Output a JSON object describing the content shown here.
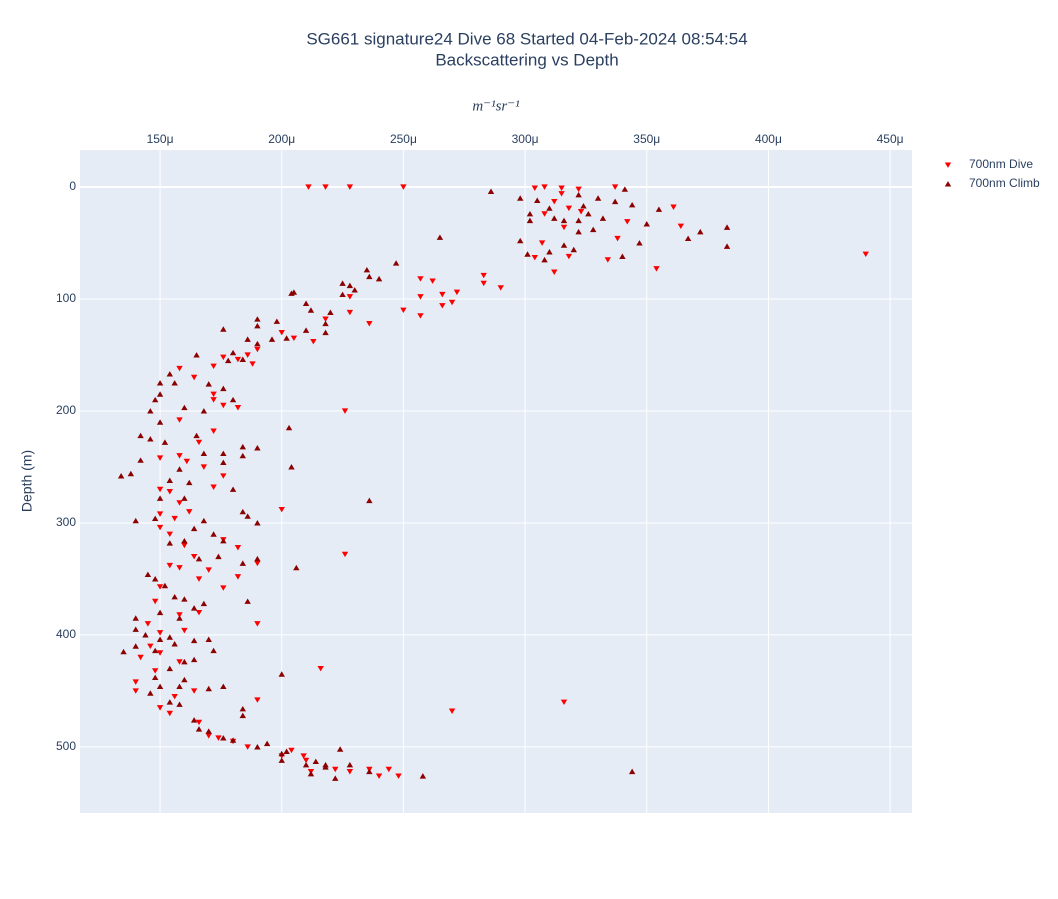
{
  "chart_data": {
    "type": "scatter",
    "title": "SG661 signature24 Dive 68 Started 04-Feb-2024 08:54:54",
    "subtitle": "Backscattering vs Depth",
    "x_label": "m⁻¹sr⁻¹",
    "y_label": "Depth (m)",
    "xlim": [
      0.0001171,
      0.000459
    ],
    "ylim": [
      -33,
      559
    ],
    "y_reversed": true,
    "xaxis_side": "top",
    "grid": true,
    "legend": "right",
    "xticks": [
      {
        "value": 0.00015,
        "label": "150μ"
      },
      {
        "value": 0.0002,
        "label": "200μ"
      },
      {
        "value": 0.00025,
        "label": "250μ"
      },
      {
        "value": 0.0003,
        "label": "300μ"
      },
      {
        "value": 0.00035,
        "label": "350μ"
      },
      {
        "value": 0.0004,
        "label": "400μ"
      },
      {
        "value": 0.00045,
        "label": "450μ"
      }
    ],
    "yticks": [
      0,
      100,
      200,
      300,
      400,
      500
    ],
    "series": [
      {
        "name": "700nm Dive",
        "color": "#ff0000",
        "marker": "triangle-down",
        "x": [
          0.000211,
          0.000218,
          0.000228,
          0.00025,
          0.000304,
          0.000308,
          0.000315,
          0.000322,
          0.000337,
          0.000315,
          0.000312,
          0.000318,
          0.000308,
          0.000323,
          0.000316,
          0.000361,
          0.000364,
          0.000342,
          0.000338,
          0.000334,
          0.000354,
          0.00044,
          0.000312,
          0.000318,
          0.000307,
          0.000304,
          0.000257,
          0.000257,
          0.000262,
          0.000266,
          0.000272,
          0.000266,
          0.00027,
          0.000283,
          0.000283,
          0.00029,
          0.00025,
          0.000257,
          0.000236,
          0.000228,
          0.000228,
          0.000218,
          0.0002,
          0.000205,
          0.000213,
          0.00019,
          0.000188,
          0.000186,
          0.000176,
          0.000182,
          0.000172,
          0.000158,
          0.000164,
          0.000172,
          0.000172,
          0.000176,
          0.000182,
          0.000226,
          0.000158,
          0.000172,
          0.000166,
          0.000158,
          0.00015,
          0.000161,
          0.000168,
          0.000176,
          0.000172,
          0.000154,
          0.000158,
          0.00015,
          0.000162,
          0.00015,
          0.000156,
          0.000154,
          0.00016,
          0.000164,
          0.00017,
          0.000182,
          0.000176,
          0.000166,
          0.00015,
          0.000176,
          0.000182,
          0.000158,
          0.000154,
          0.00015,
          0.000148,
          0.000158,
          0.000166,
          0.00016,
          0.00015,
          0.000146,
          0.00015,
          0.000142,
          0.000148,
          0.00014,
          0.000158,
          0.000164,
          0.000156,
          0.00015,
          0.000154,
          0.000166,
          0.00017,
          0.000174,
          0.000186,
          0.00018,
          0.0002,
          0.000226,
          0.00019,
          0.00019,
          0.000216,
          0.00027,
          0.000316,
          0.00019,
          0.000204,
          0.0002,
          0.00021,
          0.000236,
          0.000244,
          0.000248,
          0.00024,
          0.000228,
          0.000222,
          0.000212,
          0.000209,
          0.00014,
          0.000145
        ],
        "values": [
          0,
          0,
          0,
          0,
          1,
          0,
          1,
          2,
          0,
          6,
          13,
          19,
          24,
          22,
          36,
          18,
          35,
          31,
          46,
          65,
          73,
          60,
          76,
          62,
          50,
          63,
          82,
          98,
          84,
          96,
          94,
          106,
          103,
          79,
          86,
          90,
          110,
          115,
          122,
          112,
          98,
          118,
          130,
          135,
          138,
          145,
          158,
          150,
          152,
          154,
          160,
          162,
          170,
          185,
          190,
          195,
          197,
          200,
          208,
          218,
          228,
          240,
          242,
          245,
          250,
          258,
          268,
          272,
          282,
          270,
          290,
          292,
          296,
          310,
          320,
          330,
          342,
          348,
          358,
          350,
          304,
          315,
          322,
          340,
          338,
          357,
          370,
          382,
          380,
          396,
          398,
          410,
          416,
          420,
          432,
          442,
          424,
          450,
          455,
          465,
          470,
          478,
          490,
          492,
          500,
          495,
          288,
          328,
          336,
          390,
          430,
          468,
          460,
          458,
          503,
          508,
          512,
          520,
          520,
          526,
          526,
          522,
          520,
          522,
          508,
          450,
          390
        ]
      },
      {
        "name": "700nm Climb",
        "color": "#8b0000",
        "marker": "triangle-up",
        "x": [
          0.000286,
          0.000298,
          0.000305,
          0.000302,
          0.00031,
          0.000322,
          0.00033,
          0.000337,
          0.000341,
          0.000344,
          0.000324,
          0.000326,
          0.000332,
          0.000328,
          0.000322,
          0.000316,
          0.000312,
          0.000302,
          0.000298,
          0.000301,
          0.00031,
          0.000308,
          0.000316,
          0.000322,
          0.00032,
          0.00034,
          0.000347,
          0.00035,
          0.000355,
          0.000367,
          0.000372,
          0.000383,
          0.000383,
          0.000265,
          0.000247,
          0.000235,
          0.000236,
          0.00024,
          0.000228,
          0.000225,
          0.00023,
          0.000225,
          0.00021,
          0.000212,
          0.000204,
          0.00022,
          0.000218,
          0.000218,
          0.00021,
          0.000198,
          0.00019,
          0.00019,
          0.00019,
          0.000196,
          0.000202,
          0.000186,
          0.000176,
          0.00018,
          0.000184,
          0.000178,
          0.000165,
          0.000154,
          0.00015,
          0.00015,
          0.000156,
          0.00017,
          0.000176,
          0.00018,
          0.000168,
          0.00016,
          0.000148,
          0.000146,
          0.00015,
          0.000146,
          0.000142,
          0.000152,
          0.000165,
          0.000168,
          0.000176,
          0.000184,
          0.00019,
          0.000184,
          0.000176,
          0.000158,
          0.000154,
          0.000162,
          0.000142,
          0.000134,
          0.000138,
          0.00015,
          0.00016,
          0.00018,
          0.000184,
          0.00019,
          0.000186,
          0.000168,
          0.000164,
          0.000172,
          0.000176,
          0.000174,
          0.000184,
          0.00019,
          0.000166,
          0.00016,
          0.000154,
          0.000148,
          0.00014,
          0.000145,
          0.000148,
          0.000152,
          0.000156,
          0.00016,
          0.000168,
          0.000164,
          0.000186,
          0.000158,
          0.00015,
          0.00014,
          0.00014,
          0.000144,
          0.00015,
          0.000156,
          0.000164,
          0.00017,
          0.000172,
          0.000164,
          0.00016,
          0.00015,
          0.000146,
          0.000154,
          0.000158,
          0.00017,
          0.000176,
          0.000184,
          0.000164,
          0.000166,
          0.00017,
          0.000184,
          0.000176,
          0.00018,
          0.00019,
          0.000194,
          0.0002,
          0.0002,
          0.000202,
          0.000214,
          0.00021,
          0.000218,
          0.000212,
          0.000222,
          0.000218,
          0.000224,
          0.000228,
          0.000236,
          0.000258,
          0.000344,
          0.000205,
          0.000203,
          0.000204,
          0.0002,
          0.000206,
          0.000236,
          0.00014,
          0.000135,
          0.000154,
          0.000148,
          0.000158,
          0.000148,
          0.00016,
          0.000154
        ],
        "values": [
          4,
          10,
          12,
          24,
          19,
          7,
          10,
          13,
          2,
          16,
          17,
          24,
          28,
          38,
          30,
          30,
          28,
          30,
          48,
          60,
          58,
          65,
          52,
          40,
          56,
          62,
          50,
          33,
          20,
          46,
          40,
          36,
          53,
          45,
          68,
          74,
          80,
          82,
          88,
          86,
          92,
          96,
          104,
          110,
          95,
          112,
          122,
          130,
          128,
          120,
          118,
          124,
          140,
          136,
          135,
          136,
          127,
          148,
          154,
          155,
          150,
          167,
          175,
          185,
          175,
          176,
          180,
          190,
          200,
          197,
          190,
          200,
          210,
          225,
          222,
          228,
          222,
          238,
          238,
          232,
          233,
          240,
          246,
          252,
          262,
          264,
          244,
          258,
          256,
          278,
          278,
          270,
          290,
          300,
          294,
          298,
          305,
          310,
          316,
          330,
          336,
          332,
          332,
          316,
          318,
          296,
          298,
          346,
          350,
          356,
          366,
          368,
          372,
          376,
          370,
          385,
          380,
          385,
          395,
          400,
          404,
          408,
          405,
          404,
          414,
          422,
          440,
          446,
          452,
          460,
          462,
          448,
          446,
          466,
          476,
          484,
          486,
          472,
          492,
          494,
          500,
          497,
          506,
          512,
          504,
          513,
          516,
          516,
          524,
          528,
          518,
          502,
          516,
          522,
          526,
          522,
          94,
          215,
          250,
          435,
          340,
          280,
          410,
          415,
          430,
          438,
          446,
          414,
          424,
          402
        ]
      }
    ]
  }
}
